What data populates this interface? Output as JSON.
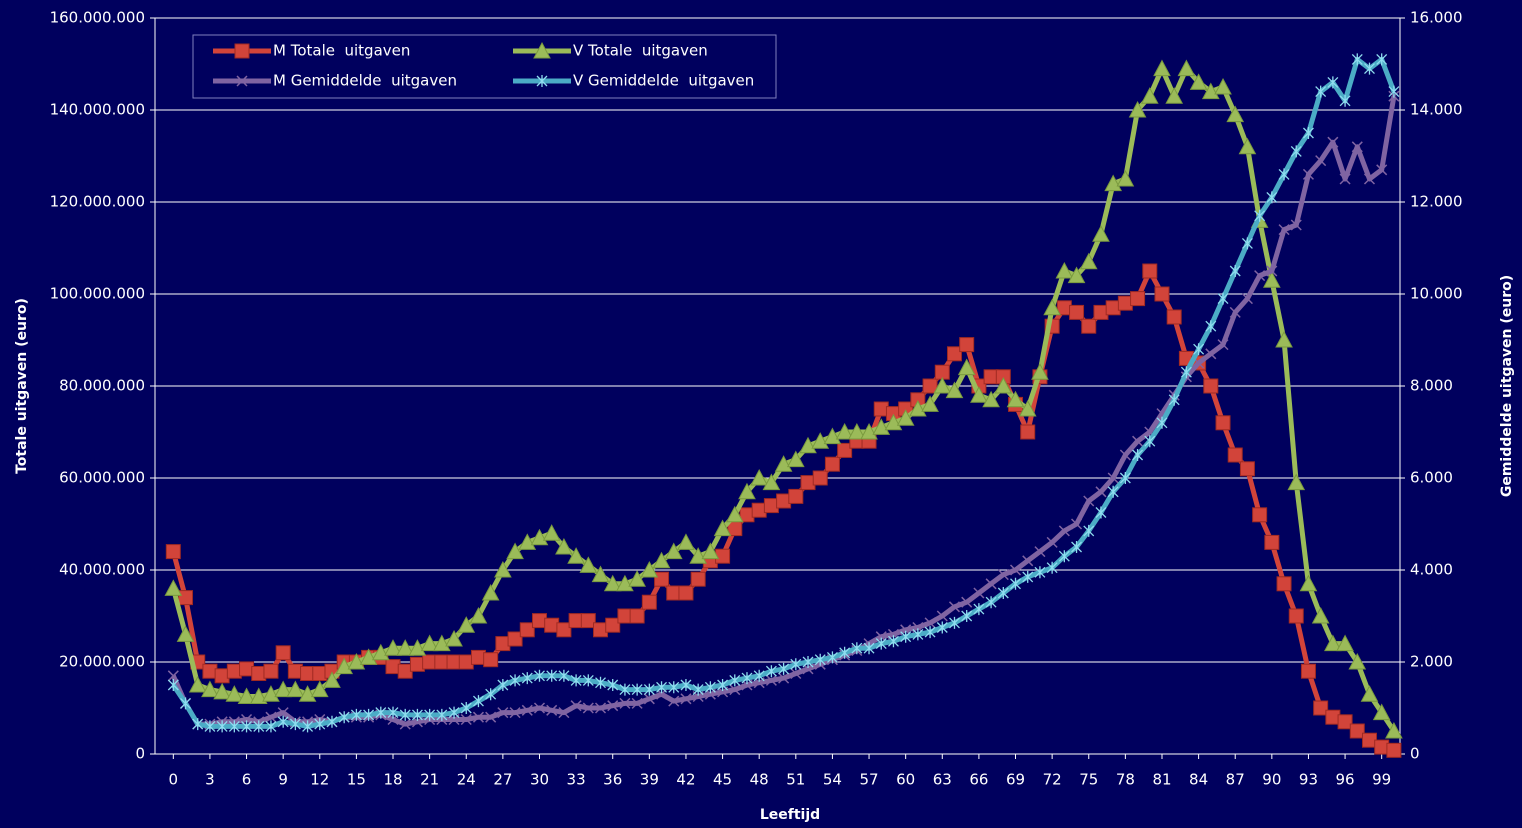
{
  "chart_data": {
    "type": "line",
    "xlabel": "Leeftijd",
    "ylabel": "Totale uitgaven (euro)",
    "y2label": "Gemiddelde uitgaven (euro)",
    "x": [
      0,
      1,
      2,
      3,
      4,
      5,
      6,
      7,
      8,
      9,
      10,
      11,
      12,
      13,
      14,
      15,
      16,
      17,
      18,
      19,
      20,
      21,
      22,
      23,
      24,
      25,
      26,
      27,
      28,
      29,
      30,
      31,
      32,
      33,
      34,
      35,
      36,
      37,
      38,
      39,
      40,
      41,
      42,
      43,
      44,
      45,
      46,
      47,
      48,
      49,
      50,
      51,
      52,
      53,
      54,
      55,
      56,
      57,
      58,
      59,
      60,
      61,
      62,
      63,
      64,
      65,
      66,
      67,
      68,
      69,
      70,
      71,
      72,
      73,
      74,
      75,
      76,
      77,
      78,
      79,
      80,
      81,
      82,
      83,
      84,
      85,
      86,
      87,
      88,
      89,
      90,
      91,
      92,
      93,
      94,
      95,
      96,
      97,
      98,
      99,
      100
    ],
    "xlim": [
      -1.5,
      100.5
    ],
    "xticks": [
      0,
      3,
      6,
      9,
      12,
      15,
      18,
      21,
      24,
      27,
      30,
      33,
      36,
      39,
      42,
      45,
      48,
      51,
      54,
      57,
      60,
      63,
      66,
      69,
      72,
      75,
      78,
      81,
      84,
      87,
      90,
      93,
      96,
      99
    ],
    "ylim": [
      0,
      160000000
    ],
    "yticks": [
      0,
      {
        "value": 20000000,
        "label": "20.000.000"
      },
      {
        "value": 40000000,
        "label": "40.000.000"
      },
      {
        "value": 60000000,
        "label": "60.000.000"
      },
      {
        "value": 80000000,
        "label": "80.000.000"
      },
      {
        "value": 100000000,
        "label": "100.000.000"
      },
      {
        "value": 120000000,
        "label": "120.000.000"
      },
      {
        "value": 140000000,
        "label": "140.000.000"
      },
      {
        "value": 160000000,
        "label": "160.000.000"
      }
    ],
    "y2lim": [
      0,
      16000
    ],
    "y2ticks": [
      0,
      {
        "value": 2000,
        "label": "2.000"
      },
      {
        "value": 4000,
        "label": "4.000"
      },
      {
        "value": 6000,
        "label": "6.000"
      },
      {
        "value": 8000,
        "label": "8.000"
      },
      {
        "value": 10000,
        "label": "10.000"
      },
      {
        "value": 12000,
        "label": "12.000"
      },
      {
        "value": 14000,
        "label": "14.000"
      },
      {
        "value": 16000,
        "label": "16.000"
      }
    ],
    "grid": true,
    "legend": "top-left",
    "series": [
      {
        "name": "M Totale  uitgaven",
        "color": "#d2443a",
        "marker": "square",
        "values": [
          44000000,
          34000000,
          20000000,
          18000000,
          17000000,
          18000000,
          18500000,
          17500000,
          18000000,
          22000000,
          18000000,
          17500000,
          17500000,
          18000000,
          20000000,
          20000000,
          21000000,
          21000000,
          19000000,
          18000000,
          19500000,
          20000000,
          20000000,
          20000000,
          20000000,
          21000000,
          20500000,
          24000000,
          25000000,
          27000000,
          29000000,
          28000000,
          27000000,
          29000000,
          29000000,
          27000000,
          28000000,
          30000000,
          30000000,
          33000000,
          38000000,
          35000000,
          35000000,
          38000000,
          42000000,
          43000000,
          49000000,
          52000000,
          53000000,
          54000000,
          55000000,
          56000000,
          59000000,
          60000000,
          63000000,
          66000000,
          68000000,
          68000000,
          75000000,
          74000000,
          75000000,
          77000000,
          80000000,
          83000000,
          87000000,
          89000000,
          80000000,
          82000000,
          82000000,
          76000000,
          70000000,
          82000000,
          93000000,
          97000000,
          96000000,
          93000000,
          96000000,
          97000000,
          98000000,
          99000000,
          105000000,
          100000000,
          95000000,
          86000000,
          85000000,
          80000000,
          72000000,
          65000000,
          62000000,
          52000000,
          46000000,
          37000000,
          30000000,
          18000000,
          10000000,
          8000000,
          7000000,
          5000000,
          3000000,
          1500000,
          800000
        ]
      },
      {
        "name": "V Totale  uitgaven",
        "color": "#9bbb59",
        "marker": "triangle",
        "values": [
          36000000,
          26000000,
          15000000,
          14000000,
          13500000,
          13000000,
          12500000,
          12500000,
          13000000,
          14000000,
          14000000,
          13000000,
          14000000,
          16000000,
          19000000,
          20000000,
          21000000,
          22000000,
          23000000,
          23000000,
          23000000,
          24000000,
          24000000,
          25000000,
          28000000,
          30000000,
          35000000,
          40000000,
          44000000,
          46000000,
          47000000,
          48000000,
          45000000,
          43000000,
          41000000,
          39000000,
          37000000,
          37000000,
          38000000,
          40000000,
          42000000,
          44000000,
          46000000,
          43000000,
          44000000,
          49000000,
          52000000,
          57000000,
          60000000,
          59000000,
          63000000,
          64000000,
          67000000,
          68000000,
          69000000,
          70000000,
          70000000,
          70000000,
          71000000,
          72000000,
          73000000,
          75000000,
          76000000,
          80000000,
          79000000,
          84000000,
          78000000,
          77000000,
          80000000,
          77000000,
          75000000,
          83000000,
          97000000,
          105000000,
          104000000,
          107000000,
          113000000,
          124000000,
          125000000,
          140000000,
          143000000,
          149000000,
          143000000,
          149000000,
          146000000,
          144000000,
          145000000,
          139000000,
          132000000,
          116000000,
          103000000,
          90000000,
          59000000,
          37000000,
          30000000,
          24000000,
          24000000,
          20000000,
          13000000,
          9000000,
          5000000
        ]
      },
      {
        "name": "M Gemiddelde  uitgaven",
        "color": "#8064a2",
        "marker": "x",
        "axis": "y2",
        "values": [
          1700,
          1100,
          650,
          650,
          700,
          700,
          750,
          700,
          800,
          900,
          700,
          700,
          750,
          700,
          800,
          800,
          800,
          850,
          750,
          650,
          700,
          750,
          750,
          750,
          750,
          800,
          800,
          900,
          900,
          950,
          1000,
          950,
          900,
          1050,
          1000,
          1000,
          1050,
          1100,
          1100,
          1200,
          1300,
          1150,
          1200,
          1250,
          1300,
          1350,
          1400,
          1500,
          1550,
          1600,
          1650,
          1750,
          1850,
          1950,
          2050,
          2150,
          2250,
          2400,
          2550,
          2600,
          2700,
          2750,
          2850,
          3000,
          3200,
          3300,
          3500,
          3700,
          3900,
          4000,
          4200,
          4400,
          4600,
          4850,
          5000,
          5500,
          5700,
          6000,
          6500,
          6800,
          7000,
          7400,
          7800,
          8200,
          8500,
          8700,
          8900,
          9600,
          9900,
          10400,
          10500,
          11400,
          11500,
          12600,
          12900,
          13300,
          12500,
          13200,
          12500,
          12700,
          14300
        ]
      },
      {
        "name": "V Gemiddelde  uitgaven",
        "color": "#4bacc6",
        "marker": "star",
        "axis": "y2",
        "values": [
          1500,
          1100,
          650,
          600,
          600,
          600,
          600,
          600,
          600,
          700,
          650,
          600,
          650,
          700,
          800,
          850,
          850,
          900,
          900,
          850,
          850,
          850,
          850,
          900,
          1000,
          1150,
          1300,
          1500,
          1600,
          1650,
          1700,
          1700,
          1700,
          1600,
          1600,
          1550,
          1500,
          1400,
          1400,
          1400,
          1450,
          1450,
          1500,
          1400,
          1450,
          1500,
          1600,
          1650,
          1700,
          1800,
          1850,
          1950,
          2000,
          2050,
          2100,
          2200,
          2300,
          2300,
          2400,
          2450,
          2550,
          2600,
          2650,
          2750,
          2850,
          3000,
          3150,
          3300,
          3500,
          3700,
          3850,
          3950,
          4050,
          4300,
          4500,
          4850,
          5250,
          5700,
          6000,
          6500,
          6800,
          7200,
          7700,
          8300,
          8800,
          9300,
          9900,
          10500,
          11100,
          11700,
          12100,
          12600,
          13100,
          13500,
          14400,
          14600,
          14200,
          15100,
          14900,
          15100,
          14400
        ]
      }
    ]
  }
}
